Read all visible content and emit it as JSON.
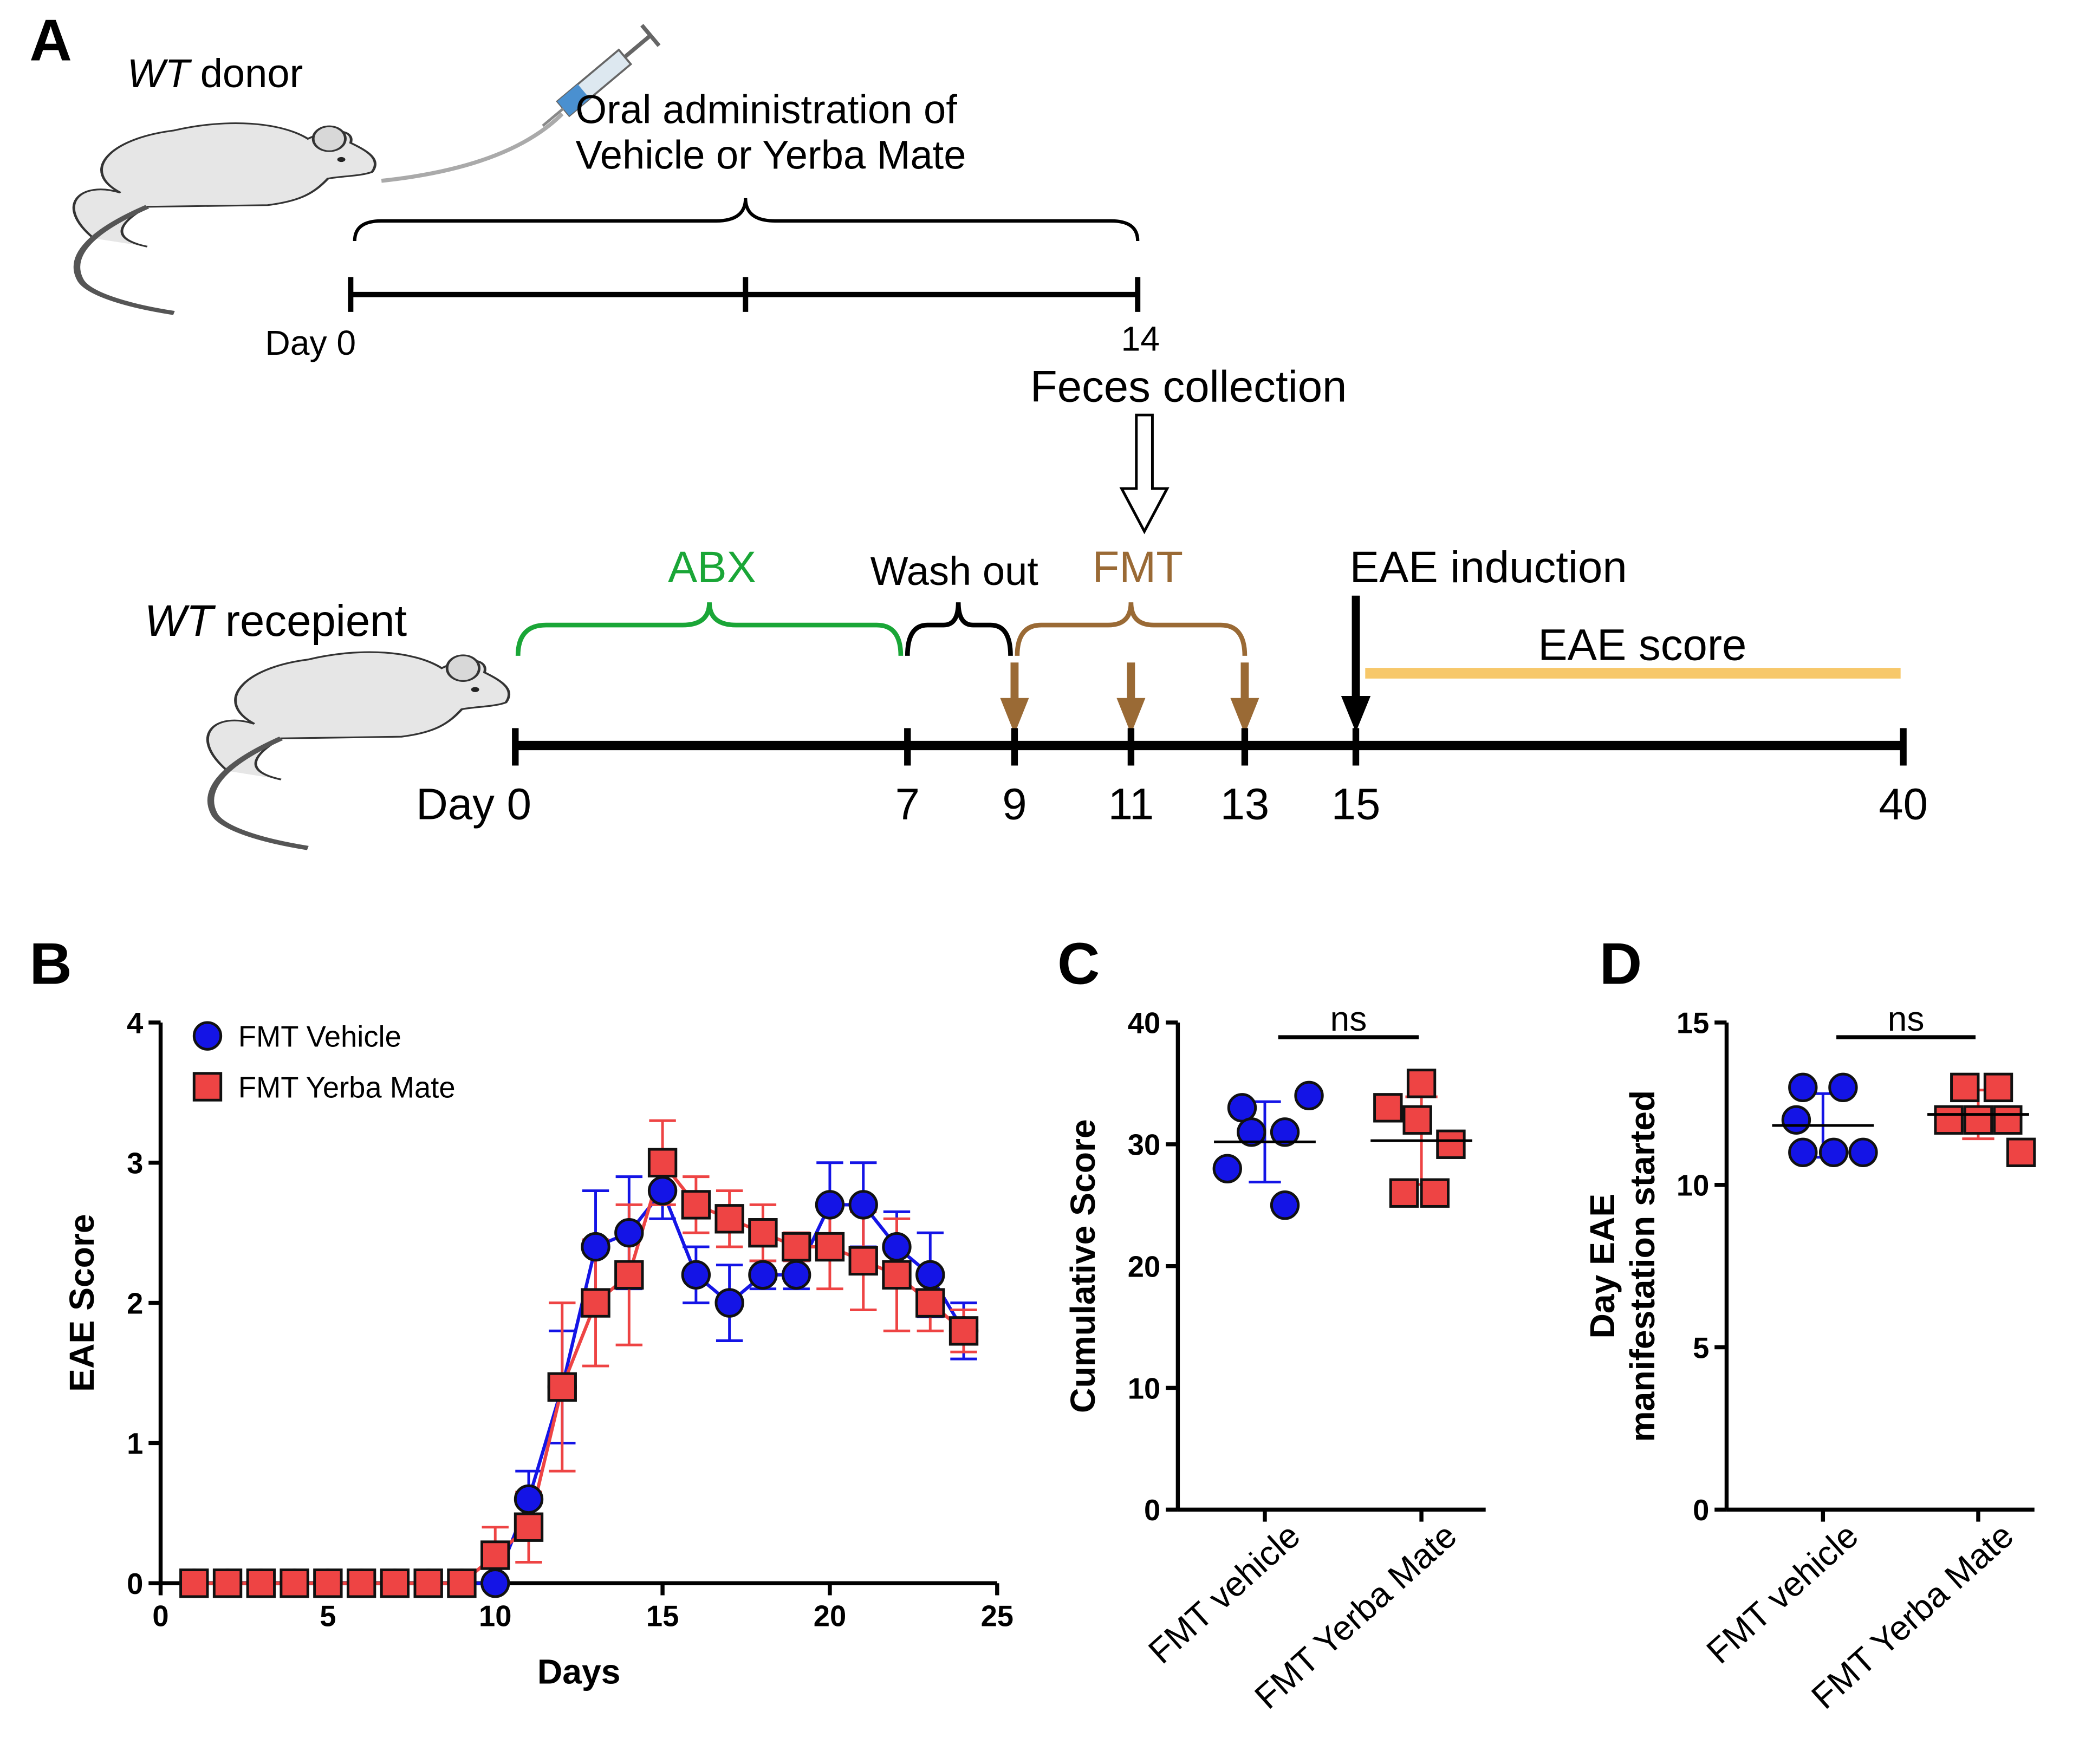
{
  "panel_labels": [
    "A",
    "B",
    "C",
    "D"
  ],
  "diagram": {
    "donor": {
      "strain": "WT",
      "role": "donor"
    },
    "treatment": [
      "Oral administration of",
      "Vehicle or Yerba Mate"
    ],
    "donor_timeline": [
      "Day 0",
      "14"
    ],
    "collection": "Feces collection",
    "recipient": {
      "strain": "WT",
      "role": "recepient"
    },
    "phases": [
      "ABX",
      "Wash out",
      "FMT",
      "EAE induction",
      "EAE score"
    ],
    "recipient_timeline": [
      "Day 0",
      "7",
      "9",
      "11",
      "13",
      "15",
      "40"
    ]
  },
  "chart_data": [
    {
      "type": "line",
      "xlabel": "Days",
      "ylabel": "EAE Score",
      "x": [
        1,
        2,
        3,
        4,
        5,
        6,
        7,
        8,
        9,
        10,
        11,
        12,
        13,
        14,
        15,
        16,
        17,
        18,
        19,
        20,
        21,
        22,
        23,
        24
      ],
      "xlim": [
        0,
        25
      ],
      "xticks": [
        0,
        5,
        10,
        15,
        20,
        25
      ],
      "ylim": [
        0,
        4
      ],
      "yticks": [
        0,
        1,
        2,
        3,
        4
      ],
      "legend": "upper left",
      "series": [
        {
          "name": "FMT Vehicle",
          "color": "#1414e6",
          "marker": "circle",
          "values": [
            0,
            0,
            0,
            0,
            0,
            0,
            0,
            0,
            0,
            0,
            0.6,
            1.4,
            2.4,
            2.5,
            2.8,
            2.2,
            2.0,
            2.2,
            2.2,
            2.7,
            2.7,
            2.4,
            2.2,
            1.8
          ],
          "errors": [
            0,
            0,
            0,
            0,
            0,
            0,
            0,
            0,
            0,
            0,
            0.2,
            0.4,
            0.4,
            0.4,
            0.2,
            0.2,
            0.27,
            0.1,
            0.1,
            0.3,
            0.3,
            0.25,
            0.3,
            0.2
          ]
        },
        {
          "name": "FMT Yerba Mate",
          "color": "#ee4444",
          "marker": "square",
          "values": [
            0,
            0,
            0,
            0,
            0,
            0,
            0,
            0,
            0,
            0.2,
            0.4,
            1.4,
            2.0,
            2.2,
            3.0,
            2.7,
            2.6,
            2.5,
            2.4,
            2.4,
            2.3,
            2.2,
            2.0,
            1.8
          ],
          "errors": [
            0,
            0,
            0,
            0,
            0,
            0,
            0,
            0,
            0,
            0.2,
            0.25,
            0.6,
            0.45,
            0.5,
            0.3,
            0.2,
            0.2,
            0.2,
            0.1,
            0.3,
            0.35,
            0.4,
            0.2,
            0.15
          ]
        }
      ]
    },
    {
      "type": "dot",
      "ylabel": [
        "Cumulative Score"
      ],
      "annotation": "ns",
      "categories": [
        "FMT vehicle",
        "FMT Yerba Mate"
      ],
      "colors": [
        "#1414e6",
        "#ee4444"
      ],
      "markers": [
        "circle",
        "square"
      ],
      "values": [
        [
          33,
          34,
          31,
          31,
          28,
          25
        ],
        [
          35,
          33,
          32,
          30,
          26,
          26
        ]
      ],
      "mean": [
        30.2,
        30.3
      ],
      "sd": [
        3.3,
        3.6
      ],
      "ylim": [
        0,
        40
      ],
      "yticks": [
        0,
        10,
        20,
        30,
        40
      ]
    },
    {
      "type": "dot",
      "ylabel": [
        "Day EAE",
        "manifestation started"
      ],
      "annotation": "ns",
      "categories": [
        "FMT vehicle",
        "FMT Yerba Mate"
      ],
      "colors": [
        "#1414e6",
        "#ee4444"
      ],
      "markers": [
        "circle",
        "square"
      ],
      "values": [
        [
          13,
          13,
          12,
          11,
          11,
          11
        ],
        [
          13,
          13,
          12,
          12,
          12,
          11
        ]
      ],
      "mean": [
        11.83,
        12.17
      ],
      "sd": [
        0.98,
        0.75
      ],
      "ylim": [
        0,
        15
      ],
      "yticks": [
        0,
        5,
        10,
        15
      ]
    }
  ]
}
